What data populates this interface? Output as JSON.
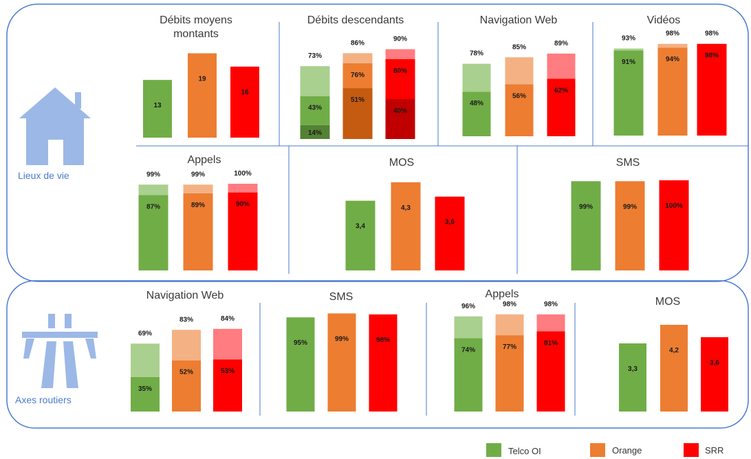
{
  "colors": {
    "telco": "#70ad47",
    "telco_light": "#a9d08e",
    "telco_dark": "#548235",
    "orange": "#ed7d31",
    "orange_light": "#f4b183",
    "orange_dark": "#c55a11",
    "srr": "#ff0000",
    "srr_light": "#ff7c80",
    "srr_dark": "#c00000",
    "frame": "#4a7bd0",
    "icon": "#9cb8e6"
  },
  "sections": [
    {
      "label": "Lieux de vie",
      "icon": "house-icon"
    },
    {
      "label": "Axes routiers",
      "icon": "road-icon"
    }
  ],
  "legend": [
    {
      "label": "Telco OI",
      "color": "#70ad47"
    },
    {
      "label": "Orange",
      "color": "#ed7d31"
    },
    {
      "label": "SRR",
      "color": "#ff0000"
    }
  ],
  "chart_data": [
    {
      "type": "bar",
      "section": "Lieux de vie",
      "title_lines": [
        "Débits moyens",
        "montants"
      ],
      "categories": [
        "Telco OI",
        "Orange",
        "SRR"
      ],
      "series": [
        {
          "name": "",
          "values": [
            13,
            19,
            16
          ],
          "labels": [
            "13",
            "19",
            "16"
          ]
        }
      ]
    },
    {
      "type": "bar",
      "stacked": true,
      "section": "Lieux de vie",
      "title_lines": [
        "Débits descendants"
      ],
      "categories": [
        "Telco OI",
        "Orange",
        "SRR"
      ],
      "series": [
        {
          "name": "",
          "shade": "dark",
          "values": [
            14,
            51,
            40
          ],
          "labels": [
            "14%",
            "51%",
            "40%"
          ]
        },
        {
          "name": "",
          "shade": "base",
          "values": [
            43,
            76,
            80
          ],
          "labels": [
            "43%",
            "76%",
            "80%"
          ]
        },
        {
          "name": "",
          "shade": "light",
          "values": [
            73,
            86,
            90
          ],
          "labels": [
            "73%",
            "86%",
            "90%"
          ]
        }
      ]
    },
    {
      "type": "bar",
      "stacked": true,
      "section": "Lieux de vie",
      "title_lines": [
        "Navigation Web"
      ],
      "categories": [
        "Telco OI",
        "Orange",
        "SRR"
      ],
      "series": [
        {
          "name": "",
          "shade": "base",
          "values": [
            48,
            56,
            62
          ],
          "labels": [
            "48%",
            "56%",
            "62%"
          ]
        },
        {
          "name": "",
          "shade": "light",
          "values": [
            78,
            85,
            89
          ],
          "labels": [
            "78%",
            "85%",
            "89%"
          ]
        }
      ]
    },
    {
      "type": "bar",
      "stacked": true,
      "section": "Lieux de vie",
      "title_lines": [
        "Vidéos"
      ],
      "categories": [
        "Telco OI",
        "Orange",
        "SRR"
      ],
      "series": [
        {
          "name": "",
          "shade": "base",
          "values": [
            91,
            94,
            98
          ],
          "labels": [
            "91%",
            "94%",
            "98%"
          ]
        },
        {
          "name": "",
          "shade": "light",
          "values": [
            93,
            98,
            98
          ],
          "labels": [
            "93%",
            "98%",
            "98%"
          ]
        }
      ]
    },
    {
      "type": "bar",
      "stacked": true,
      "section": "Lieux de vie",
      "title_lines": [
        "Appels"
      ],
      "categories": [
        "Telco OI",
        "Orange",
        "SRR"
      ],
      "series": [
        {
          "name": "",
          "shade": "base",
          "values": [
            87,
            89,
            90
          ],
          "labels": [
            "87%",
            "89%",
            "90%"
          ]
        },
        {
          "name": "",
          "shade": "light",
          "values": [
            99,
            99,
            100
          ],
          "labels": [
            "99%",
            "99%",
            "100%"
          ]
        }
      ]
    },
    {
      "type": "bar",
      "section": "Lieux de vie",
      "title_lines": [
        "MOS"
      ],
      "categories": [
        "Telco OI",
        "Orange",
        "SRR"
      ],
      "series": [
        {
          "name": "",
          "values": [
            3.4,
            4.3,
            3.6
          ],
          "labels": [
            "3,4",
            "4,3",
            "3,6"
          ]
        }
      ]
    },
    {
      "type": "bar",
      "section": "Lieux de vie",
      "title_lines": [
        "SMS"
      ],
      "categories": [
        "Telco OI",
        "Orange",
        "SRR"
      ],
      "series": [
        {
          "name": "",
          "values": [
            99,
            99,
            100
          ],
          "labels": [
            "99%",
            "99%",
            "100%"
          ]
        }
      ]
    },
    {
      "type": "bar",
      "stacked": true,
      "section": "Axes routiers",
      "title_lines": [
        "Navigation Web"
      ],
      "categories": [
        "Telco OI",
        "Orange",
        "SRR"
      ],
      "series": [
        {
          "name": "",
          "shade": "base",
          "values": [
            35,
            52,
            53
          ],
          "labels": [
            "35%",
            "52%",
            "53%"
          ]
        },
        {
          "name": "",
          "shade": "light",
          "values": [
            69,
            83,
            84
          ],
          "labels": [
            "69%",
            "83%",
            "84%"
          ]
        }
      ]
    },
    {
      "type": "bar",
      "section": "Axes routiers",
      "title_lines": [
        "SMS"
      ],
      "categories": [
        "Telco OI",
        "Orange",
        "SRR"
      ],
      "series": [
        {
          "name": "",
          "values": [
            95,
            99,
            98
          ],
          "labels": [
            "95%",
            "99%",
            "98%"
          ]
        }
      ]
    },
    {
      "type": "bar",
      "stacked": true,
      "section": "Axes routiers",
      "title_lines": [
        "Appels"
      ],
      "categories": [
        "Telco OI",
        "Orange",
        "SRR"
      ],
      "series": [
        {
          "name": "",
          "shade": "base",
          "values": [
            74,
            77,
            81
          ],
          "labels": [
            "74%",
            "77%",
            "81%"
          ]
        },
        {
          "name": "",
          "shade": "light",
          "values": [
            96,
            98,
            98
          ],
          "labels": [
            "96%",
            "98%",
            "98%"
          ]
        }
      ]
    },
    {
      "type": "bar",
      "section": "Axes routiers",
      "title_lines": [
        "MOS"
      ],
      "categories": [
        "Telco OI",
        "Orange",
        "SRR"
      ],
      "series": [
        {
          "name": "",
          "values": [
            3.3,
            4.2,
            3.6
          ],
          "labels": [
            "3,3",
            "4,2",
            "3,6"
          ]
        }
      ]
    }
  ]
}
